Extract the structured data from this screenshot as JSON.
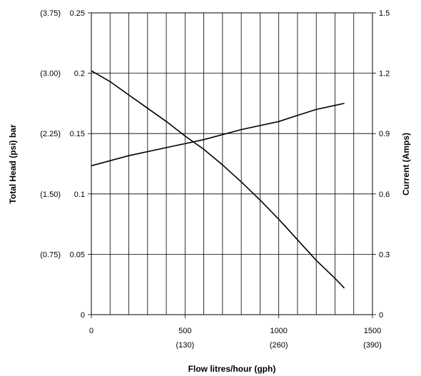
{
  "chart_data": {
    "type": "line",
    "title": "",
    "xlabel": "Flow litres/hour (gph)",
    "ylabel_left": "Total Head (psi) bar",
    "ylabel_right": "Current (Amps)",
    "xlim": [
      0,
      1500
    ],
    "ylim_left": [
      0,
      0.25
    ],
    "ylim_right": [
      0,
      1.5
    ],
    "grid": true,
    "x_ticks": [
      {
        "value": 0,
        "label": "0",
        "sub": ""
      },
      {
        "value": 500,
        "label": "500",
        "sub": "(130)"
      },
      {
        "value": 1000,
        "label": "1000",
        "sub": "(260)"
      },
      {
        "value": 1500,
        "label": "1500",
        "sub": "(390)"
      }
    ],
    "y_left_ticks": [
      {
        "value": 0,
        "label": "0",
        "alt": ""
      },
      {
        "value": 0.05,
        "label": "0.05",
        "alt": "(0.75)"
      },
      {
        "value": 0.1,
        "label": "0.1",
        "alt": "(1.50)"
      },
      {
        "value": 0.15,
        "label": "0.15",
        "alt": "(2.25)"
      },
      {
        "value": 0.2,
        "label": "0.2",
        "alt": "(3.00)"
      },
      {
        "value": 0.25,
        "label": "0.25",
        "alt": "(3.75)"
      }
    ],
    "y_right_ticks": [
      {
        "value": 0,
        "label": "0"
      },
      {
        "value": 0.3,
        "label": "0.3"
      },
      {
        "value": 0.6,
        "label": "0.6"
      },
      {
        "value": 0.9,
        "label": "0.9"
      },
      {
        "value": 1.2,
        "label": "1.2"
      },
      {
        "value": 1.5,
        "label": "1.5"
      }
    ],
    "series": [
      {
        "axis": "left",
        "x": [
          0,
          100,
          200,
          300,
          400,
          500,
          600,
          700,
          800,
          900,
          1000,
          1100,
          1200,
          1300,
          1350
        ],
        "y": [
          0.202,
          0.193,
          0.182,
          0.171,
          0.16,
          0.148,
          0.137,
          0.124,
          0.11,
          0.095,
          0.079,
          0.062,
          0.045,
          0.03,
          0.022
        ]
      },
      {
        "axis": "right",
        "x": [
          0,
          200,
          400,
          600,
          800,
          1000,
          1100,
          1200,
          1300,
          1350
        ],
        "y": [
          0.74,
          0.79,
          0.83,
          0.87,
          0.92,
          0.96,
          0.99,
          1.02,
          1.04,
          1.05
        ]
      }
    ]
  }
}
